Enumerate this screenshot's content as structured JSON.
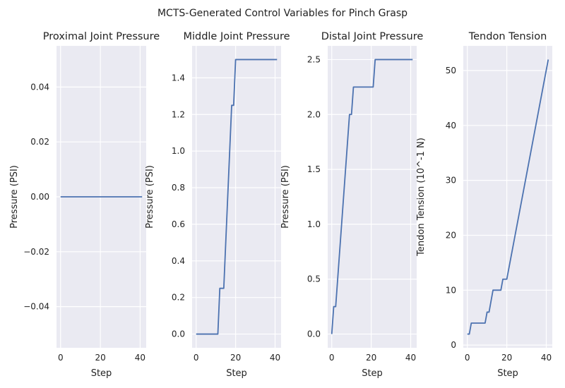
{
  "figure": {
    "title": "MCTS-Generated Control Variables for Pinch Grasp"
  },
  "colors": {
    "series": "#4c72b0",
    "background": "#eaeaf2",
    "grid": "#ffffff"
  },
  "chart_data": [
    {
      "type": "line",
      "title": "Proximal Joint Pressure",
      "xlabel": "Step",
      "ylabel": "Pressure (PSI)",
      "xlim": [
        -2.05,
        43.05
      ],
      "ylim": [
        -0.055,
        0.055
      ],
      "xticks": [
        0,
        20,
        40
      ],
      "xtick_labels": [
        "0",
        "20",
        "40"
      ],
      "yticks": [
        -0.04,
        -0.02,
        0.0,
        0.02,
        0.04
      ],
      "ytick_labels": [
        "−0.04",
        "−0.02",
        "0.00",
        "0.02",
        "0.04"
      ],
      "grid": true,
      "series": [
        {
          "x": [
            0,
            41
          ],
          "values": [
            0,
            0
          ]
        }
      ]
    },
    {
      "type": "line",
      "title": "Middle Joint Pressure",
      "xlabel": "Step",
      "ylabel": "Pressure (PSI)",
      "xlim": [
        -2.05,
        43.05
      ],
      "ylim": [
        -0.075,
        1.575
      ],
      "xticks": [
        0,
        20,
        40
      ],
      "xtick_labels": [
        "0",
        "20",
        "40"
      ],
      "yticks": [
        0.0,
        0.2,
        0.4,
        0.6,
        0.8,
        1.0,
        1.2,
        1.4
      ],
      "ytick_labels": [
        "0.0",
        "0.2",
        "0.4",
        "0.6",
        "0.8",
        "1.0",
        "1.2",
        "1.4"
      ],
      "grid": true,
      "series": [
        {
          "x": [
            0,
            11,
            12,
            14,
            18,
            19,
            20,
            41
          ],
          "values": [
            0,
            0,
            0.25,
            0.25,
            1.25,
            1.25,
            1.5,
            1.5
          ]
        }
      ]
    },
    {
      "type": "line",
      "title": "Distal Joint Pressure",
      "xlabel": "Step",
      "ylabel": "Pressure (PSI)",
      "xlim": [
        -2.05,
        43.05
      ],
      "ylim": [
        -0.125,
        2.625
      ],
      "xticks": [
        0,
        20,
        40
      ],
      "xtick_labels": [
        "0",
        "20",
        "40"
      ],
      "yticks": [
        0.0,
        0.5,
        1.0,
        1.5,
        2.0,
        2.5
      ],
      "ytick_labels": [
        "0.0",
        "0.5",
        "1.0",
        "1.5",
        "2.0",
        "2.5"
      ],
      "grid": true,
      "series": [
        {
          "x": [
            0,
            1,
            2,
            9,
            10,
            11,
            21,
            22,
            41
          ],
          "values": [
            0,
            0.25,
            0.25,
            2.0,
            2.0,
            2.25,
            2.25,
            2.5,
            2.5
          ]
        }
      ]
    },
    {
      "type": "line",
      "title": "Tendon Tension",
      "xlabel": "Step",
      "ylabel": "Tendon Tension (10^-1 N)",
      "xlim": [
        -2.05,
        43.05
      ],
      "ylim": [
        -0.5,
        54.5
      ],
      "xticks": [
        0,
        20,
        40
      ],
      "xtick_labels": [
        "0",
        "20",
        "40"
      ],
      "yticks": [
        0,
        10,
        20,
        30,
        40,
        50
      ],
      "ytick_labels": [
        "0",
        "10",
        "20",
        "30",
        "40",
        "50"
      ],
      "grid": true,
      "series": [
        {
          "x": [
            0,
            1,
            2,
            9,
            10,
            11,
            12,
            13,
            17,
            18,
            20,
            41
          ],
          "values": [
            2,
            2,
            4,
            4,
            6,
            6,
            8,
            10,
            10,
            12,
            12,
            52
          ]
        }
      ]
    }
  ]
}
